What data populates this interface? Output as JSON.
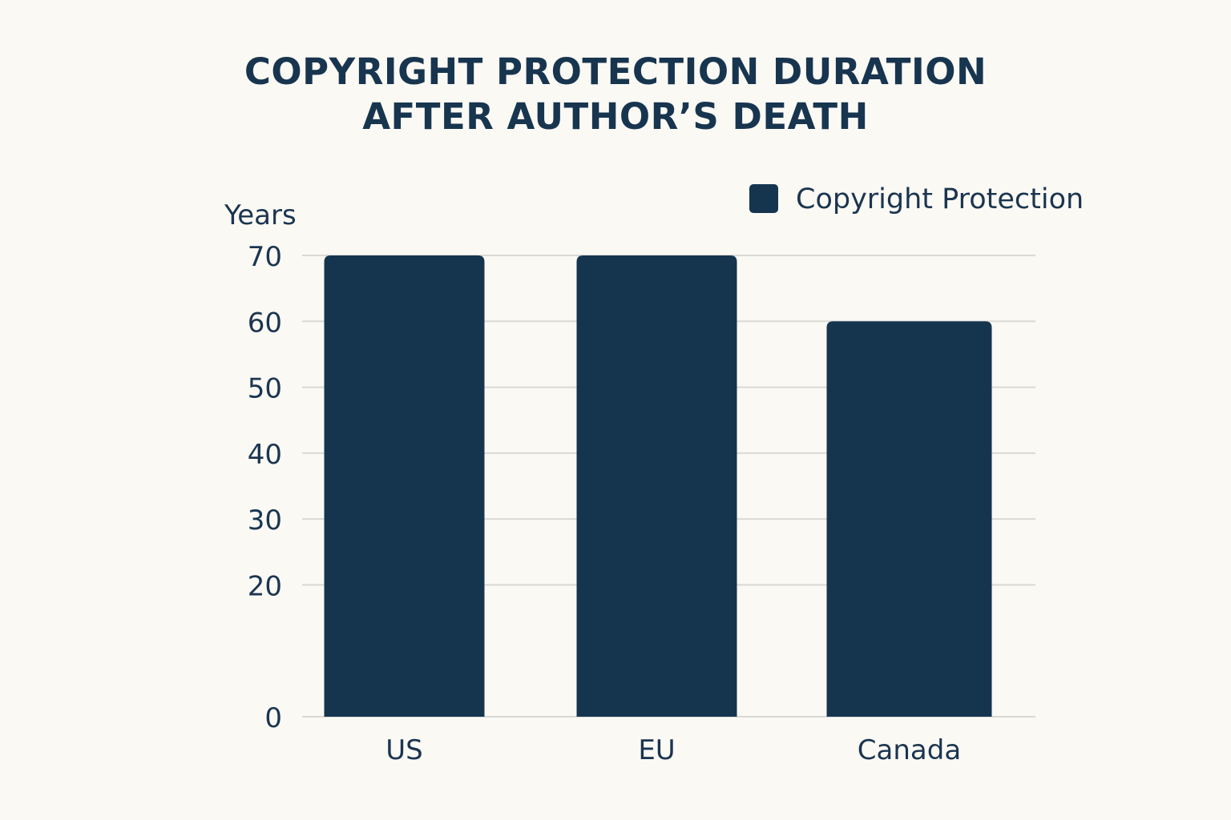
{
  "chart_data": {
    "type": "bar",
    "title_lines": [
      "COPYRIGHT PROTECTION DURATION",
      "AFTER AUTHOR’S DEATH"
    ],
    "ylabel": "Years",
    "xlabel": "",
    "categories": [
      "US",
      "EU",
      "Canada"
    ],
    "series": [
      {
        "name": "Copyright Protection",
        "values": [
          70,
          70,
          60
        ],
        "color": "#15354f"
      }
    ],
    "ylim": [
      0,
      70
    ],
    "yticks": [
      0,
      20,
      30,
      40,
      50,
      60,
      70
    ],
    "grid": true,
    "legend_position": "top-right"
  },
  "colors": {
    "background": "#fbf9f4",
    "bar": "#15354f",
    "grid": "#d9d9d6",
    "text": "#1b3550"
  }
}
